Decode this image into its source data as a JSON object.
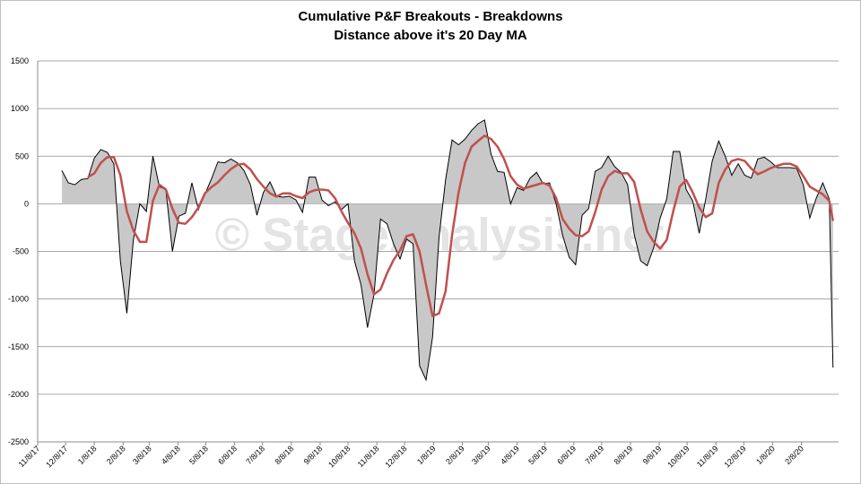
{
  "chart_data": {
    "type": "line",
    "title": "Cumulative P&F Breakouts - Breakdowns",
    "subtitle": "Distance above it's 20 Day MA",
    "watermark": "© StageAnalysis.net",
    "x": [
      "12/4/17",
      "12/11/17",
      "12/18/17",
      "12/25/17",
      "1/1/18",
      "1/8/18",
      "1/15/18",
      "1/22/18",
      "1/29/18",
      "2/5/18",
      "2/12/18",
      "2/19/18",
      "2/26/18",
      "3/5/18",
      "3/12/18",
      "3/19/18",
      "3/26/18",
      "4/2/18",
      "4/9/18",
      "4/16/18",
      "4/23/18",
      "4/30/18",
      "5/7/18",
      "5/14/18",
      "5/21/18",
      "5/28/18",
      "6/4/18",
      "6/11/18",
      "6/18/18",
      "6/25/18",
      "7/2/18",
      "7/9/18",
      "7/16/18",
      "7/23/18",
      "7/30/18",
      "8/6/18",
      "8/13/18",
      "8/20/18",
      "8/27/18",
      "9/3/18",
      "9/10/18",
      "9/17/18",
      "9/24/18",
      "10/1/18",
      "10/8/18",
      "10/15/18",
      "10/22/18",
      "10/29/18",
      "11/5/18",
      "11/12/18",
      "11/19/18",
      "11/26/18",
      "12/3/18",
      "12/10/18",
      "12/17/18",
      "12/24/18",
      "12/31/18",
      "1/7/19",
      "1/14/19",
      "1/21/19",
      "1/28/19",
      "2/4/19",
      "2/11/19",
      "2/18/19",
      "2/25/19",
      "3/4/19",
      "3/11/19",
      "3/18/19",
      "3/25/19",
      "4/1/19",
      "4/8/19",
      "4/15/19",
      "4/22/19",
      "4/29/19",
      "5/6/19",
      "5/13/19",
      "5/20/19",
      "5/27/19",
      "6/3/19",
      "6/10/19",
      "6/17/19",
      "6/24/19",
      "7/1/19",
      "7/8/19",
      "7/15/19",
      "7/22/19",
      "7/29/19",
      "8/5/19",
      "8/12/19",
      "8/19/19",
      "8/26/19",
      "9/2/19",
      "9/9/19",
      "9/16/19",
      "9/23/19",
      "9/30/19",
      "10/7/19",
      "10/14/19",
      "10/21/19",
      "10/28/19",
      "11/4/19",
      "11/11/19",
      "11/18/19",
      "11/25/19",
      "12/2/19",
      "12/9/19",
      "12/16/19",
      "12/23/19",
      "12/30/19",
      "1/6/20",
      "1/13/20",
      "1/20/20",
      "1/27/20",
      "2/3/20",
      "2/10/20",
      "2/17/20",
      "2/24/20",
      "3/2/20",
      "3/9/20",
      "3/13/20"
    ],
    "series": [
      {
        "type": "area",
        "color": "#c8c8c8",
        "line_color": "#000000",
        "values": [
          350,
          220,
          200,
          255,
          265,
          480,
          570,
          540,
          420,
          -600,
          -1150,
          -380,
          0,
          -80,
          500,
          180,
          150,
          -500,
          -130,
          -100,
          220,
          -60,
          100,
          260,
          440,
          430,
          470,
          430,
          350,
          200,
          -120,
          120,
          230,
          80,
          70,
          80,
          40,
          -90,
          280,
          280,
          40,
          -20,
          20,
          -60,
          0,
          -600,
          -850,
          -1300,
          -950,
          -160,
          -210,
          -420,
          -580,
          -370,
          -420,
          -1700,
          -1850,
          -1400,
          -350,
          250,
          670,
          620,
          680,
          770,
          840,
          880,
          520,
          340,
          330,
          0,
          170,
          140,
          270,
          330,
          210,
          220,
          0,
          -330,
          -560,
          -640,
          -120,
          -50,
          340,
          380,
          500,
          390,
          330,
          200,
          -320,
          -600,
          -650,
          -460,
          -150,
          50,
          550,
          550,
          150,
          30,
          -310,
          50,
          450,
          660,
          500,
          300,
          420,
          300,
          270,
          470,
          490,
          440,
          380,
          380,
          380,
          370,
          200,
          -150,
          60,
          220,
          50,
          -1720
        ]
      },
      {
        "type": "line",
        "color": "#c0504d",
        "values": [
          null,
          null,
          null,
          null,
          280,
          320,
          430,
          490,
          490,
          300,
          -80,
          -280,
          -400,
          -400,
          30,
          200,
          150,
          -50,
          -200,
          -210,
          -140,
          -40,
          110,
          175,
          225,
          300,
          365,
          410,
          420,
          360,
          260,
          180,
          110,
          75,
          110,
          110,
          80,
          60,
          120,
          145,
          150,
          140,
          60,
          -80,
          -200,
          -310,
          -470,
          -740,
          -950,
          -900,
          -730,
          -590,
          -490,
          -340,
          -320,
          -500,
          -850,
          -1180,
          -1150,
          -920,
          -330,
          120,
          430,
          600,
          660,
          715,
          680,
          600,
          470,
          290,
          200,
          160,
          180,
          200,
          220,
          190,
          60,
          -160,
          -260,
          -330,
          -340,
          -290,
          -90,
          150,
          290,
          345,
          320,
          320,
          230,
          -60,
          -290,
          -400,
          -470,
          -380,
          -80,
          180,
          250,
          120,
          -40,
          -140,
          -100,
          220,
          360,
          450,
          470,
          450,
          370,
          310,
          340,
          375,
          400,
          420,
          420,
          390,
          290,
          180,
          140,
          100,
          30,
          -180
        ]
      }
    ],
    "xlim": [
      "11/8/17",
      "3/19/20"
    ],
    "xticks": [
      "11/8/17",
      "12/8/17",
      "1/8/18",
      "2/8/18",
      "3/8/18",
      "4/8/18",
      "5/8/18",
      "6/8/18",
      "7/8/18",
      "8/8/18",
      "9/8/18",
      "10/8/18",
      "11/8/18",
      "12/8/18",
      "1/8/19",
      "2/8/19",
      "3/8/19",
      "4/8/19",
      "5/8/19",
      "6/8/19",
      "7/8/19",
      "8/8/19",
      "9/8/19",
      "10/8/19",
      "11/8/19",
      "12/8/19",
      "1/8/20",
      "2/8/20"
    ],
    "ylim": [
      -2500,
      1500
    ],
    "yticks": [
      -2500,
      -2000,
      -1500,
      -1000,
      -500,
      0,
      500,
      1000,
      1500
    ],
    "grid": true
  }
}
